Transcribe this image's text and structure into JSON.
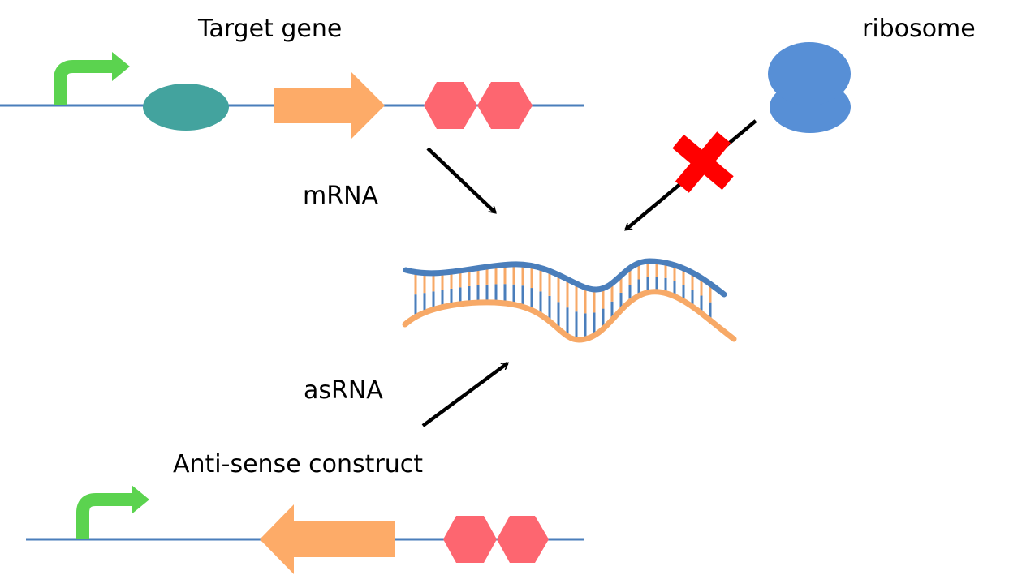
{
  "labels": {
    "target_gene": "Target gene",
    "ribosome": "ribosome",
    "mrna": "mRNA",
    "asrna": "asRNA",
    "antisense_construct": "Anti-sense construct"
  },
  "colors": {
    "dna_line": "#4a7ebb",
    "promoter": "#5bd34f",
    "operator": "#43a39e",
    "cds": "#fdab68",
    "terminator": "#fd6670",
    "ribosome": "#578fd6",
    "mrna_strand": "#4a7ebb",
    "asrna_strand": "#f7a967",
    "block": "#ff0000",
    "arrow": "#000000"
  },
  "icons": {
    "promoter": "bent-arrow-icon",
    "operator": "ellipse-icon",
    "cds": "block-arrow-icon",
    "terminator": "double-hexagon-icon",
    "ribosome": "ribosome-icon",
    "block": "red-x-icon"
  }
}
